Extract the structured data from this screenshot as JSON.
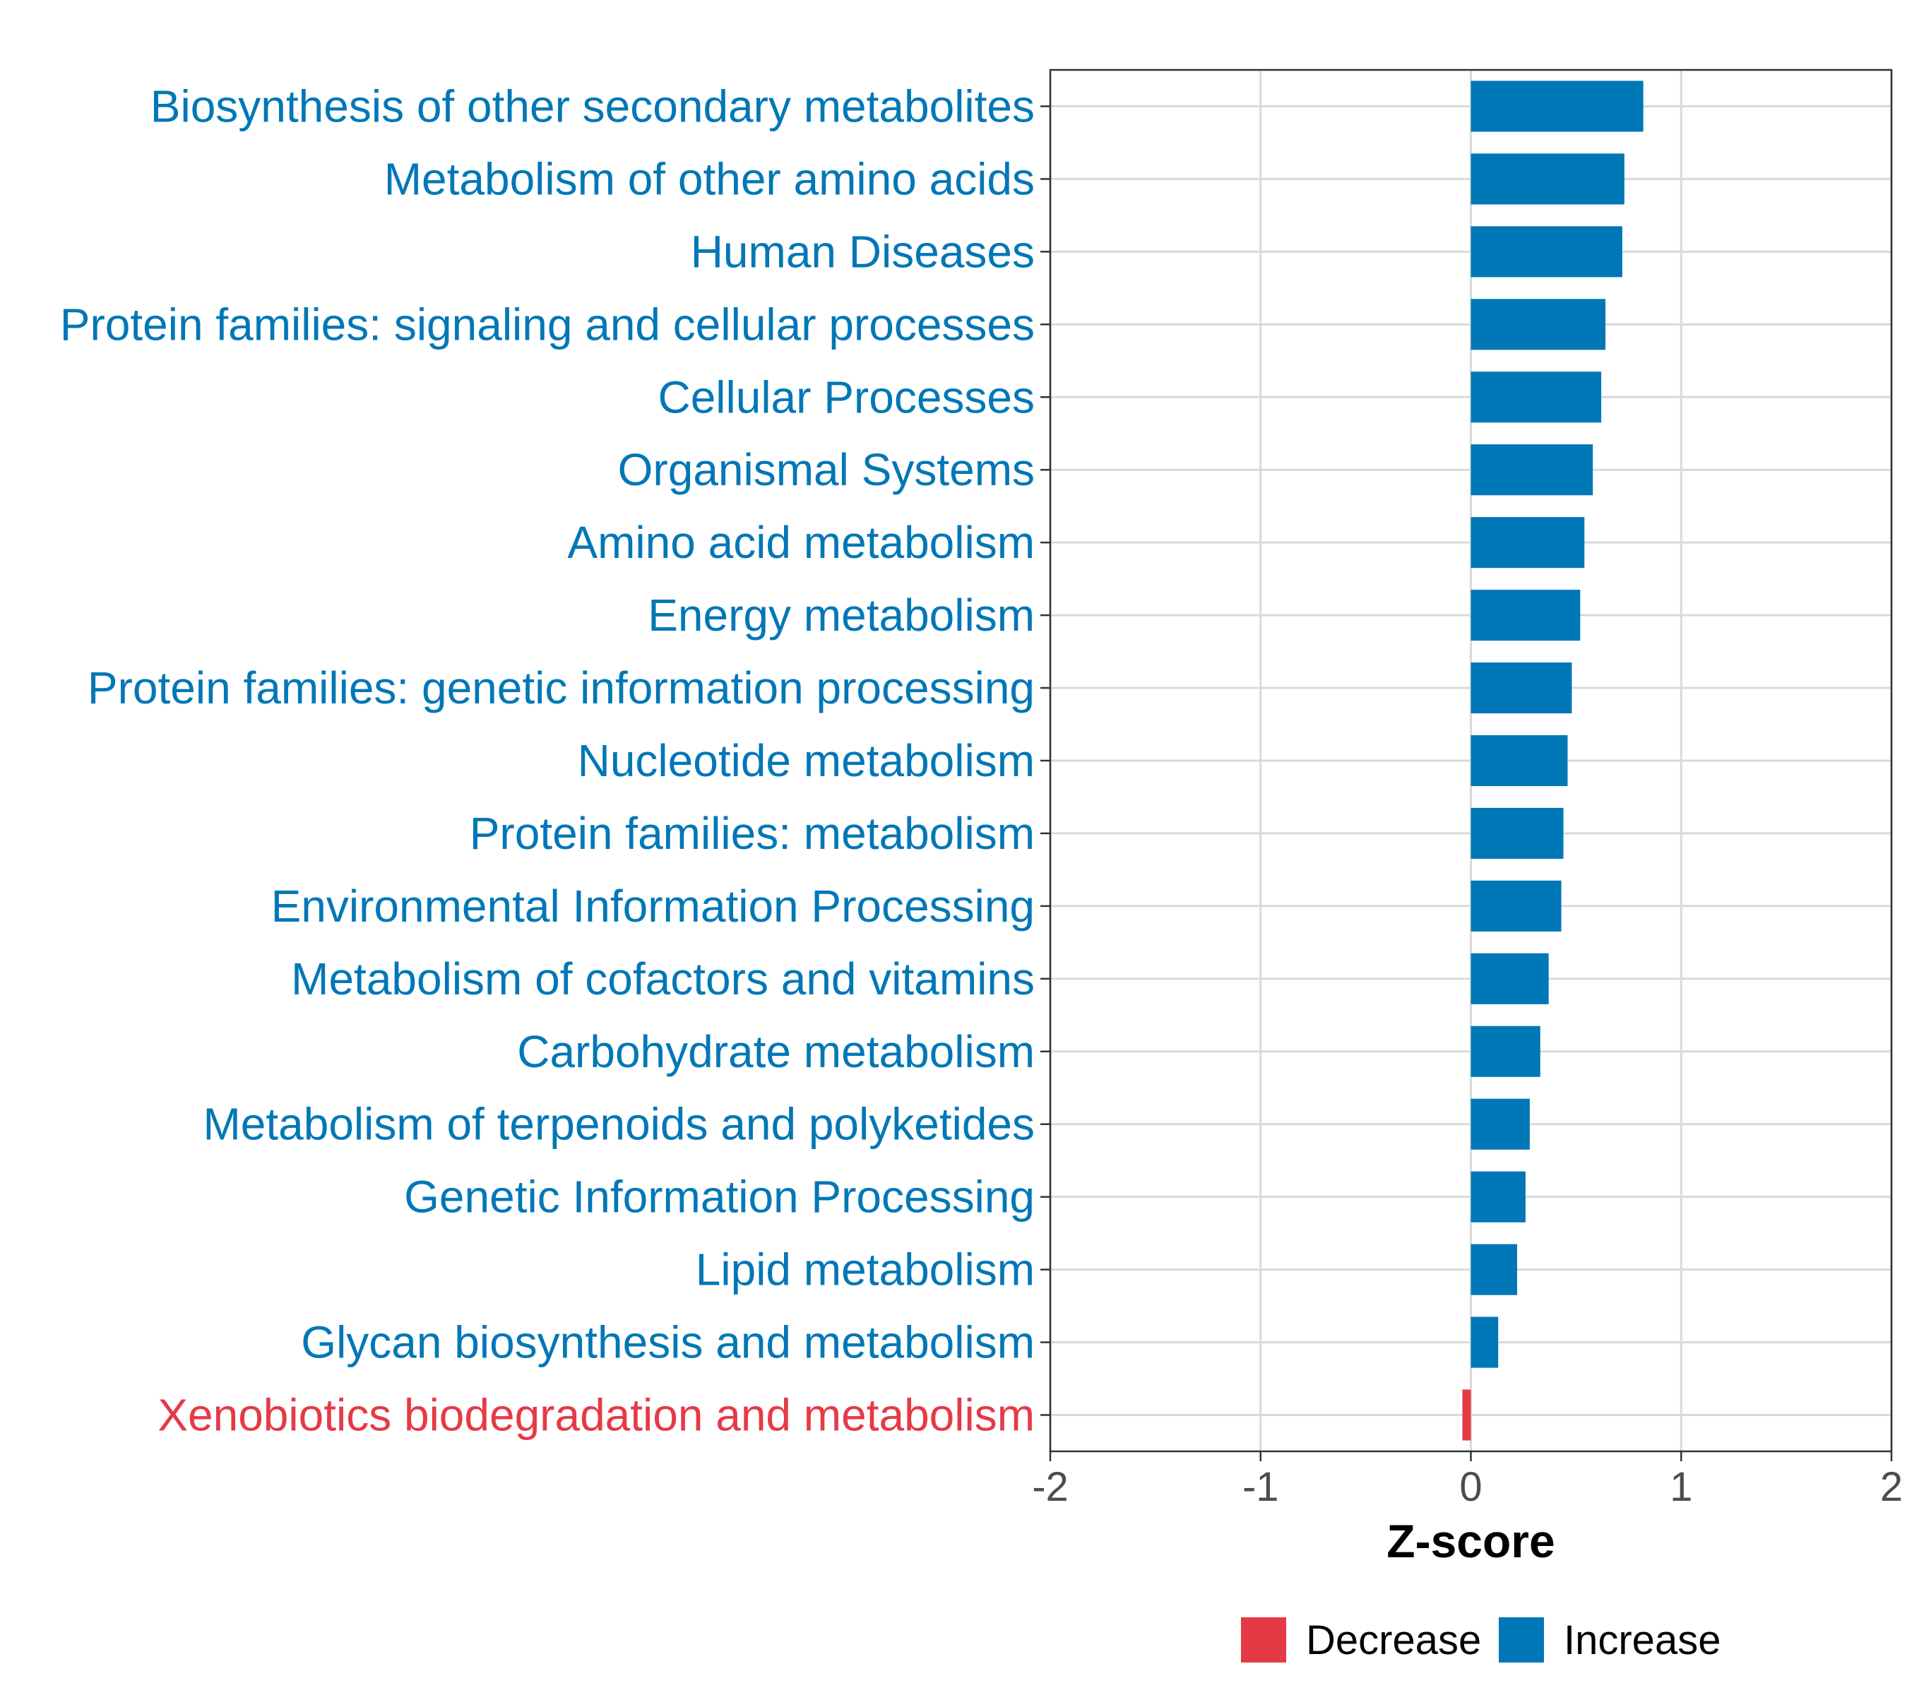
{
  "chart_data": {
    "type": "bar",
    "orientation": "horizontal",
    "title": "",
    "xlabel": "Z-score",
    "ylabel": "",
    "xlim": [
      -2,
      2
    ],
    "xticks": [
      -2,
      -1,
      0,
      1,
      2
    ],
    "grid": true,
    "categories": [
      "Biosynthesis of other secondary metabolites",
      "Metabolism of other amino acids",
      "Human Diseases",
      "Protein families: signaling and cellular processes",
      "Cellular Processes",
      "Organismal Systems",
      "Amino acid metabolism",
      "Energy metabolism",
      "Protein families: genetic information processing",
      "Nucleotide metabolism",
      "Protein families: metabolism",
      "Environmental Information Processing",
      "Metabolism of cofactors and vitamins",
      "Carbohydrate metabolism",
      "Metabolism of terpenoids and polyketides",
      "Genetic Information Processing",
      "Lipid metabolism",
      "Glycan biosynthesis and metabolism",
      "Xenobiotics biodegradation and metabolism"
    ],
    "values": [
      0.82,
      0.73,
      0.72,
      0.64,
      0.62,
      0.58,
      0.54,
      0.52,
      0.48,
      0.46,
      0.44,
      0.43,
      0.37,
      0.33,
      0.28,
      0.26,
      0.22,
      0.13,
      -0.04
    ],
    "groups": [
      "Increase",
      "Increase",
      "Increase",
      "Increase",
      "Increase",
      "Increase",
      "Increase",
      "Increase",
      "Increase",
      "Increase",
      "Increase",
      "Increase",
      "Increase",
      "Increase",
      "Increase",
      "Increase",
      "Increase",
      "Increase",
      "Decrease"
    ],
    "legend": {
      "position": "bottom",
      "items": [
        {
          "label": "Decrease",
          "color": "#E63946"
        },
        {
          "label": "Increase",
          "color": "#0077B6"
        }
      ]
    }
  }
}
